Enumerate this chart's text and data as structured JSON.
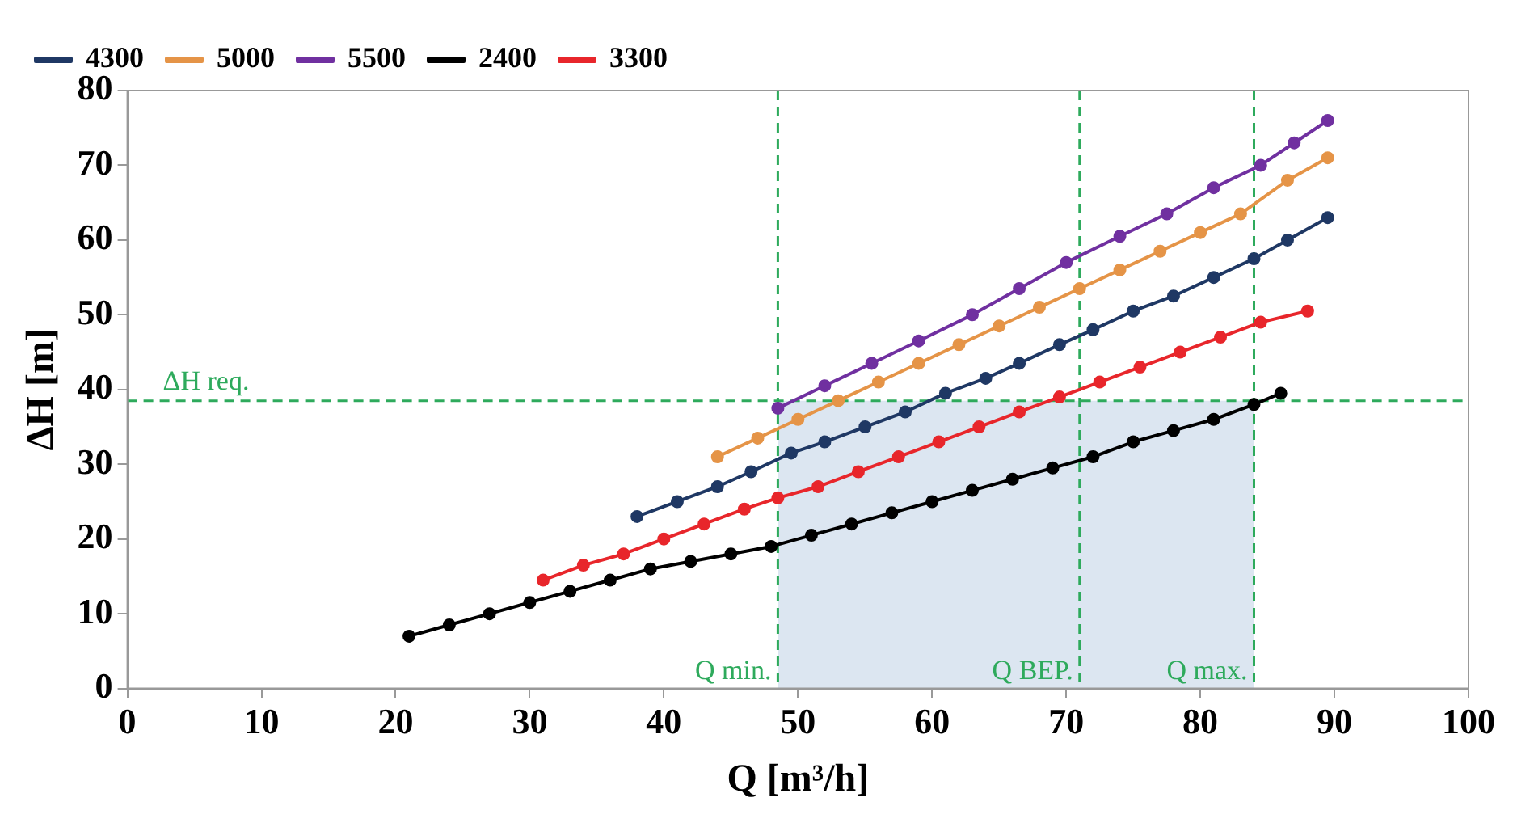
{
  "chart_data": {
    "type": "line",
    "xlabel": "Q [m³/h]",
    "ylabel": "ΔH [m]",
    "xlim": [
      0,
      100
    ],
    "xticks": [
      0,
      10,
      20,
      30,
      40,
      50,
      60,
      70,
      80,
      90,
      100
    ],
    "ylim": [
      0,
      80
    ],
    "yticks": [
      0,
      10,
      20,
      30,
      40,
      50,
      60,
      70,
      80
    ],
    "grid": false,
    "legend": "top left",
    "marker": "circle",
    "line_style": "solid",
    "series": [
      {
        "name": "4300",
        "color": "#1f3864",
        "x": [
          38,
          41,
          44,
          46.5,
          49.5,
          52,
          55,
          58,
          61,
          64,
          66.5,
          69.5,
          72,
          75,
          78,
          81,
          84,
          86.5,
          89.5
        ],
        "values": [
          23,
          25,
          27,
          29,
          31.5,
          33,
          35,
          37,
          39.5,
          41.5,
          43.5,
          46,
          48,
          50.5,
          52.5,
          55,
          57.5,
          60,
          63
        ]
      },
      {
        "name": "5000",
        "color": "#e59447",
        "x": [
          44,
          47,
          50,
          53,
          56,
          59,
          62,
          65,
          68,
          71,
          74,
          77,
          80,
          83,
          86.5,
          89.5
        ],
        "values": [
          31,
          33.5,
          36,
          38.5,
          41,
          43.5,
          46,
          48.5,
          51,
          53.5,
          56,
          58.5,
          61,
          63.5,
          68,
          71
        ]
      },
      {
        "name": "5500",
        "color": "#7030a0",
        "x": [
          48.5,
          52,
          55.5,
          59,
          63,
          66.5,
          70,
          74,
          77.5,
          81,
          84.5,
          87,
          89.5
        ],
        "values": [
          37.5,
          40.5,
          43.5,
          46.5,
          50,
          53.5,
          57,
          60.5,
          63.5,
          67,
          70,
          73,
          76
        ]
      },
      {
        "name": "2400",
        "color": "#000000",
        "x": [
          21,
          24,
          27,
          30,
          33,
          36,
          39,
          42,
          45,
          48,
          51,
          54,
          57,
          60,
          63,
          66,
          69,
          72,
          75,
          78,
          81,
          84,
          86
        ],
        "values": [
          7,
          8.5,
          10,
          11.5,
          13,
          14.5,
          16,
          17,
          18,
          19,
          20.5,
          22,
          23.5,
          25,
          26.5,
          28,
          29.5,
          31,
          33,
          34.5,
          36,
          38,
          39.5
        ]
      },
      {
        "name": "3300",
        "color": "#e8262b",
        "x": [
          31,
          34,
          37,
          40,
          43,
          46,
          48.5,
          51.5,
          54.5,
          57.5,
          60.5,
          63.5,
          66.5,
          69.5,
          72.5,
          75.5,
          78.5,
          81.5,
          84.5,
          88
        ],
        "values": [
          14.5,
          16.5,
          18,
          20,
          22,
          24,
          25.5,
          27,
          29,
          31,
          33,
          35,
          37,
          39,
          41,
          43,
          45,
          47,
          49,
          50.5
        ]
      }
    ],
    "ref_lines": [
      {
        "axis": "y",
        "value": 38.5,
        "label": "ΔH req.",
        "color": "#2eaa5c",
        "line_style": "dashed"
      },
      {
        "axis": "x",
        "value": 48.5,
        "label": "Q min.",
        "color": "#2eaa5c",
        "line_style": "dashed"
      },
      {
        "axis": "x",
        "value": 71,
        "label": "Q BEP.",
        "color": "#2eaa5c",
        "line_style": "dashed"
      },
      {
        "axis": "x",
        "value": 84,
        "label": "Q max.",
        "color": "#2eaa5c",
        "line_style": "dashed"
      }
    ],
    "bands": [
      {
        "axis": "x",
        "from": 48.5,
        "to": 84,
        "color": "#dce6f1"
      }
    ]
  }
}
